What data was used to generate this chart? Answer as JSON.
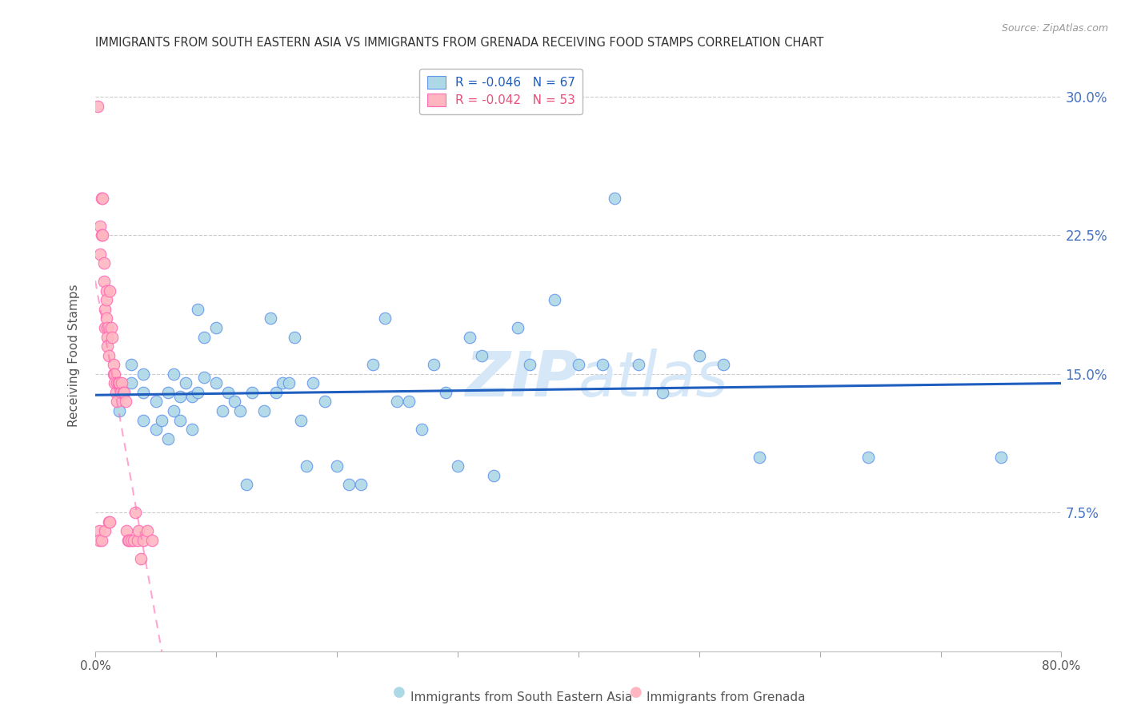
{
  "title": "IMMIGRANTS FROM SOUTH EASTERN ASIA VS IMMIGRANTS FROM GRENADA RECEIVING FOOD STAMPS CORRELATION CHART",
  "source": "Source: ZipAtlas.com",
  "ylabel": "Receiving Food Stamps",
  "ytick_labels": [
    "30.0%",
    "22.5%",
    "15.0%",
    "7.5%"
  ],
  "ytick_values": [
    0.3,
    0.225,
    0.15,
    0.075
  ],
  "xlim": [
    0.0,
    0.8
  ],
  "ylim": [
    0.0,
    0.32
  ],
  "legend_blue_r": "-0.046",
  "legend_blue_n": "67",
  "legend_pink_r": "-0.042",
  "legend_pink_n": "53",
  "blue_color": "#ADD8E6",
  "blue_edge_color": "#6495ED",
  "blue_line_color": "#1E5EBF",
  "pink_color": "#FFB6C1",
  "pink_edge_color": "#FF69B4",
  "pink_line_color": "#E8507A",
  "watermark_color": "#D6E8F7",
  "blue_scatter_x": [
    0.02,
    0.03,
    0.03,
    0.04,
    0.04,
    0.04,
    0.05,
    0.05,
    0.055,
    0.06,
    0.06,
    0.065,
    0.065,
    0.07,
    0.07,
    0.075,
    0.08,
    0.08,
    0.085,
    0.085,
    0.09,
    0.09,
    0.1,
    0.1,
    0.105,
    0.11,
    0.115,
    0.12,
    0.125,
    0.13,
    0.14,
    0.145,
    0.15,
    0.155,
    0.16,
    0.165,
    0.17,
    0.175,
    0.18,
    0.19,
    0.2,
    0.21,
    0.22,
    0.23,
    0.24,
    0.25,
    0.26,
    0.27,
    0.28,
    0.29,
    0.3,
    0.31,
    0.32,
    0.33,
    0.35,
    0.36,
    0.38,
    0.4,
    0.42,
    0.43,
    0.45,
    0.47,
    0.5,
    0.52,
    0.55,
    0.64,
    0.75
  ],
  "blue_scatter_y": [
    0.13,
    0.145,
    0.155,
    0.125,
    0.14,
    0.15,
    0.12,
    0.135,
    0.125,
    0.115,
    0.14,
    0.13,
    0.15,
    0.125,
    0.138,
    0.145,
    0.12,
    0.138,
    0.185,
    0.14,
    0.17,
    0.148,
    0.175,
    0.145,
    0.13,
    0.14,
    0.135,
    0.13,
    0.09,
    0.14,
    0.13,
    0.18,
    0.14,
    0.145,
    0.145,
    0.17,
    0.125,
    0.1,
    0.145,
    0.135,
    0.1,
    0.09,
    0.09,
    0.155,
    0.18,
    0.135,
    0.135,
    0.12,
    0.155,
    0.14,
    0.1,
    0.17,
    0.16,
    0.095,
    0.175,
    0.155,
    0.19,
    0.155,
    0.155,
    0.245,
    0.155,
    0.14,
    0.16,
    0.155,
    0.105,
    0.105,
    0.105
  ],
  "pink_scatter_x": [
    0.002,
    0.003,
    0.003,
    0.004,
    0.004,
    0.005,
    0.005,
    0.005,
    0.006,
    0.006,
    0.007,
    0.007,
    0.008,
    0.008,
    0.008,
    0.009,
    0.009,
    0.009,
    0.01,
    0.01,
    0.01,
    0.011,
    0.011,
    0.012,
    0.012,
    0.013,
    0.014,
    0.015,
    0.015,
    0.016,
    0.016,
    0.017,
    0.018,
    0.018,
    0.019,
    0.02,
    0.021,
    0.022,
    0.023,
    0.024,
    0.025,
    0.026,
    0.027,
    0.028,
    0.03,
    0.032,
    0.033,
    0.035,
    0.036,
    0.038,
    0.04,
    0.043,
    0.047
  ],
  "pink_scatter_y": [
    0.295,
    0.065,
    0.06,
    0.23,
    0.215,
    0.245,
    0.225,
    0.06,
    0.245,
    0.225,
    0.21,
    0.2,
    0.185,
    0.175,
    0.065,
    0.195,
    0.19,
    0.18,
    0.175,
    0.17,
    0.165,
    0.16,
    0.07,
    0.195,
    0.07,
    0.175,
    0.17,
    0.155,
    0.15,
    0.15,
    0.145,
    0.14,
    0.145,
    0.135,
    0.145,
    0.145,
    0.14,
    0.145,
    0.14,
    0.14,
    0.135,
    0.065,
    0.06,
    0.06,
    0.06,
    0.06,
    0.075,
    0.06,
    0.065,
    0.05,
    0.06,
    0.065,
    0.06
  ]
}
